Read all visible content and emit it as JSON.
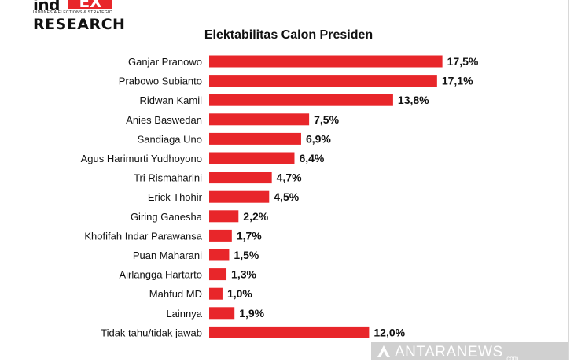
{
  "logo": {
    "brand_part1": "ind",
    "brand_part2": "EX",
    "tagline": "INDONESIA ELECTIONS & STRATEGIC",
    "brand_line2": "RESEARCH"
  },
  "watermark": {
    "text": "ANTARANEWS",
    "sub": ".com",
    "icon": "antara-logo-icon"
  },
  "colors": {
    "bar": "#e8262a",
    "text": "#111111"
  },
  "chart_data": {
    "type": "bar",
    "orientation": "horizontal",
    "title": "Elektabilitas Calon Presiden",
    "xlabel": "",
    "ylabel": "",
    "xlim": [
      0,
      17.5
    ],
    "grid": false,
    "categories": [
      "Ganjar Pranowo",
      "Prabowo Subianto",
      "Ridwan Kamil",
      "Anies Baswedan",
      "Sandiaga Uno",
      "Agus Harimurti Yudhoyono",
      "Tri Rismaharini",
      "Erick Thohir",
      "Giring Ganesha",
      "Khofifah Indar Parawansa",
      "Puan Maharani",
      "Airlangga Hartarto",
      "Mahfud MD",
      "Lainnya",
      "Tidak tahu/tidak jawab"
    ],
    "values": [
      17.5,
      17.1,
      13.8,
      7.5,
      6.9,
      6.4,
      4.7,
      4.5,
      2.2,
      1.7,
      1.5,
      1.3,
      1.0,
      1.9,
      12.0
    ],
    "data_labels": [
      "17,5%",
      "17,1%",
      "13,8%",
      "7,5%",
      "6,9%",
      "6,4%",
      "4,7%",
      "4,5%",
      "2,2%",
      "1,7%",
      "1,5%",
      "1,3%",
      "1,0%",
      "1,9%",
      "12,0%"
    ]
  }
}
